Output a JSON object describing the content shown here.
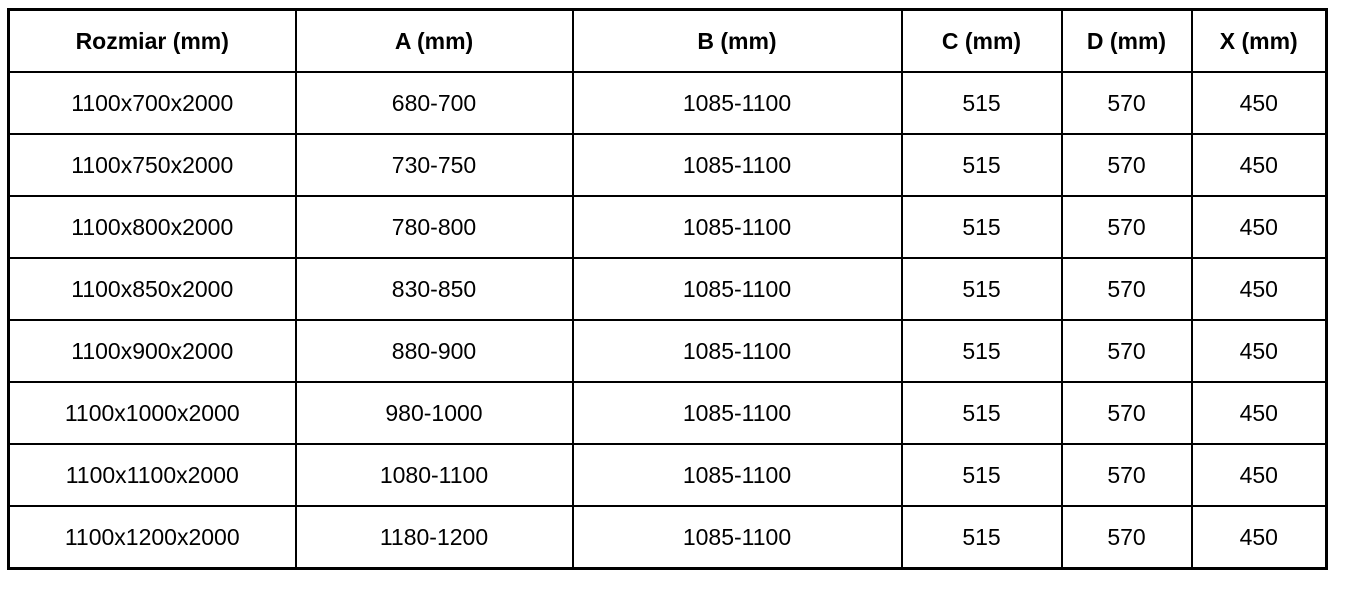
{
  "table": {
    "columns": [
      {
        "key": "rozmiar",
        "label": "Rozmiar (mm)"
      },
      {
        "key": "a",
        "label": "A (mm)"
      },
      {
        "key": "b",
        "label": "B (mm)"
      },
      {
        "key": "c",
        "label": "C (mm)"
      },
      {
        "key": "d",
        "label": "D (mm)"
      },
      {
        "key": "x",
        "label": "X (mm)"
      }
    ],
    "rows": [
      [
        "1100x700x2000",
        "680-700",
        "1085-1100",
        "515",
        "570",
        "450"
      ],
      [
        "1100x750x2000",
        "730-750",
        "1085-1100",
        "515",
        "570",
        "450"
      ],
      [
        "1100x800x2000",
        "780-800",
        "1085-1100",
        "515",
        "570",
        "450"
      ],
      [
        "1100x850x2000",
        "830-850",
        "1085-1100",
        "515",
        "570",
        "450"
      ],
      [
        "1100x900x2000",
        "880-900",
        "1085-1100",
        "515",
        "570",
        "450"
      ],
      [
        "1100x1000x2000",
        "980-1000",
        "1085-1100",
        "515",
        "570",
        "450"
      ],
      [
        "1100x1100x2000",
        "1080-1100",
        "1085-1100",
        "515",
        "570",
        "450"
      ],
      [
        "1100x1200x2000",
        "1180-1200",
        "1085-1100",
        "515",
        "570",
        "450"
      ]
    ]
  },
  "chart_data": {
    "type": "table",
    "title": "",
    "columns": [
      "Rozmiar (mm)",
      "A (mm)",
      "B (mm)",
      "C (mm)",
      "D (mm)",
      "X (mm)"
    ],
    "rows": [
      [
        "1100x700x2000",
        "680-700",
        "1085-1100",
        "515",
        "570",
        "450"
      ],
      [
        "1100x750x2000",
        "730-750",
        "1085-1100",
        "515",
        "570",
        "450"
      ],
      [
        "1100x800x2000",
        "780-800",
        "1085-1100",
        "515",
        "570",
        "450"
      ],
      [
        "1100x850x2000",
        "830-850",
        "1085-1100",
        "515",
        "570",
        "450"
      ],
      [
        "1100x900x2000",
        "880-900",
        "1085-1100",
        "515",
        "570",
        "450"
      ],
      [
        "1100x1000x2000",
        "980-1000",
        "1085-1100",
        "515",
        "570",
        "450"
      ],
      [
        "1100x1100x2000",
        "1080-1100",
        "1085-1100",
        "515",
        "570",
        "450"
      ],
      [
        "1100x1200x2000",
        "1180-1200",
        "1085-1100",
        "515",
        "570",
        "450"
      ]
    ]
  },
  "colors": {
    "border": "#000000",
    "text": "#000000",
    "background": "#ffffff"
  }
}
